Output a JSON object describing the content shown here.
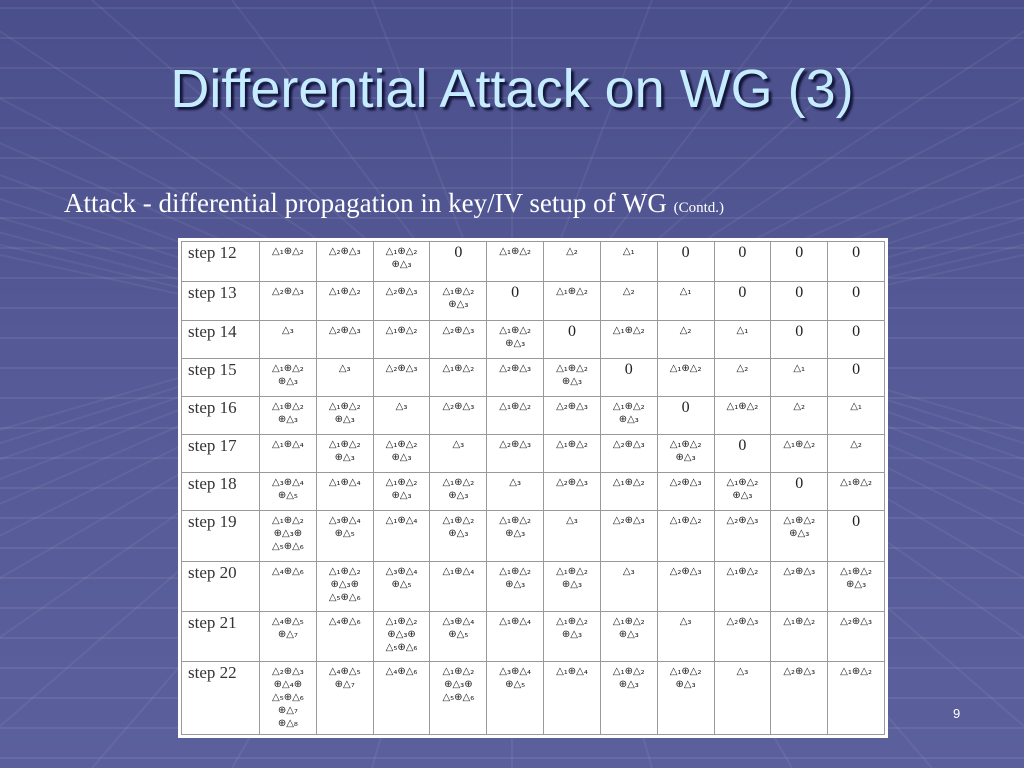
{
  "slide": {
    "title": "Differential Attack on WG (3)",
    "subtitle_main": "Attack - differential propagation in key/IV setup of WG ",
    "subtitle_small": "(Contd.)",
    "page_number": "9"
  },
  "table": {
    "rows": [
      {
        "step": "step 12",
        "cells": [
          "△₁⊕△₂",
          "△₂⊕△₃",
          "△₁⊕△₂\n⊕△₃",
          "0",
          "△₁⊕△₂",
          "△₂",
          "△₁",
          "0",
          "0",
          "0",
          "0"
        ]
      },
      {
        "step": "step 13",
        "cells": [
          "△₂⊕△₃",
          "△₁⊕△₂",
          "△₂⊕△₃",
          "△₁⊕△₂\n⊕△₃",
          "0",
          "△₁⊕△₂",
          "△₂",
          "△₁",
          "0",
          "0",
          "0"
        ]
      },
      {
        "step": "step 14",
        "cells": [
          "△₃",
          "△₂⊕△₃",
          "△₁⊕△₂",
          "△₂⊕△₃",
          "△₁⊕△₂\n⊕△₃",
          "0",
          "△₁⊕△₂",
          "△₂",
          "△₁",
          "0",
          "0"
        ]
      },
      {
        "step": "step 15",
        "cells": [
          "△₁⊕△₂\n⊕△₃",
          "△₃",
          "△₂⊕△₃",
          "△₁⊕△₂",
          "△₂⊕△₃",
          "△₁⊕△₂\n⊕△₃",
          "0",
          "△₁⊕△₂",
          "△₂",
          "△₁",
          "0"
        ]
      },
      {
        "step": "step 16",
        "cells": [
          "△₁⊕△₂\n⊕△₃",
          "△₁⊕△₂\n⊕△₃",
          "△₃",
          "△₂⊕△₃",
          "△₁⊕△₂",
          "△₂⊕△₃",
          "△₁⊕△₂\n⊕△₃",
          "0",
          "△₁⊕△₂",
          "△₂",
          "△₁"
        ]
      },
      {
        "step": "step 17",
        "cells": [
          "△₁⊕△₄",
          "△₁⊕△₂\n⊕△₃",
          "△₁⊕△₂\n⊕△₃",
          "△₃",
          "△₂⊕△₃",
          "△₁⊕△₂",
          "△₂⊕△₃",
          "△₁⊕△₂\n⊕△₃",
          "0",
          "△₁⊕△₂",
          "△₂"
        ]
      },
      {
        "step": "step 18",
        "cells": [
          "△₃⊕△₄\n⊕△₅",
          "△₁⊕△₄",
          "△₁⊕△₂\n⊕△₃",
          "△₁⊕△₂\n⊕△₃",
          "△₃",
          "△₂⊕△₃",
          "△₁⊕△₂",
          "△₂⊕△₃",
          "△₁⊕△₂\n⊕△₃",
          "0",
          "△₁⊕△₂"
        ]
      },
      {
        "step": "step 19",
        "cells": [
          "△₁⊕△₂\n⊕△₃⊕\n△₅⊕△₆",
          "△₃⊕△₄\n⊕△₅",
          "△₁⊕△₄",
          "△₁⊕△₂\n⊕△₃",
          "△₁⊕△₂\n⊕△₃",
          "△₃",
          "△₂⊕△₃",
          "△₁⊕△₂",
          "△₂⊕△₃",
          "△₁⊕△₂\n⊕△₃",
          "0"
        ]
      },
      {
        "step": "step 20",
        "cells": [
          "△₄⊕△₆",
          "△₁⊕△₂\n⊕△₃⊕\n△₅⊕△₆",
          "△₃⊕△₄\n⊕△₅",
          "△₁⊕△₄",
          "△₁⊕△₂\n⊕△₃",
          "△₁⊕△₂\n⊕△₃",
          "△₃",
          "△₂⊕△₃",
          "△₁⊕△₂",
          "△₂⊕△₃",
          "△₁⊕△₂\n⊕△₃"
        ]
      },
      {
        "step": "step 21",
        "cells": [
          "△₄⊕△₅\n⊕△₇",
          "△₄⊕△₆",
          "△₁⊕△₂\n⊕△₃⊕\n△₅⊕△₆",
          "△₃⊕△₄\n⊕△₅",
          "△₁⊕△₄",
          "△₁⊕△₂\n⊕△₃",
          "△₁⊕△₂\n⊕△₃",
          "△₃",
          "△₂⊕△₃",
          "△₁⊕△₂",
          "△₂⊕△₃"
        ]
      },
      {
        "step": "step 22",
        "cells": [
          "△₂⊕△₃\n⊕△₄⊕\n△₅⊕△₆\n⊕△₇\n⊕△₈",
          "△₄⊕△₅\n⊕△₇",
          "△₄⊕△₆",
          "△₁⊕△₂\n⊕△₃⊕\n△₅⊕△₆",
          "△₃⊕△₄\n⊕△₅",
          "△₁⊕△₄",
          "△₁⊕△₂\n⊕△₃",
          "△₁⊕△₂\n⊕△₃",
          "△₃",
          "△₂⊕△₃",
          "△₁⊕△₂"
        ]
      }
    ]
  }
}
